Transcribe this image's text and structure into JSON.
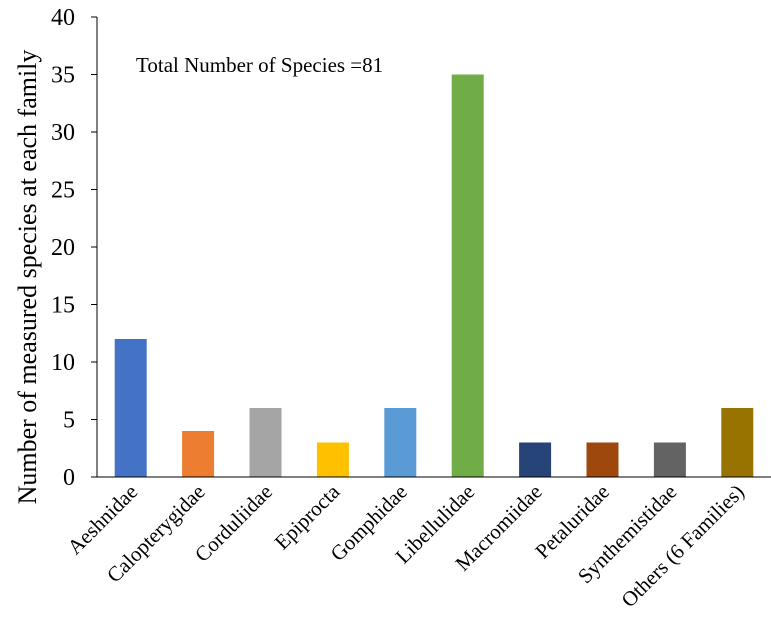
{
  "chart_data": {
    "type": "bar",
    "title": "",
    "xlabel": "",
    "ylabel": "Number of measured species at each family",
    "annotation": "Total Number of Species =81",
    "categories": [
      "Aeshnidae",
      "Calopterygidae",
      "Corduliidae",
      "Epiprocta",
      "Gomphidae",
      "Libellulidae",
      "Macromiidae",
      "Petaluridae",
      "Synthemistidae",
      "Others (6 Families)"
    ],
    "values": [
      12,
      4,
      6,
      3,
      6,
      35,
      3,
      3,
      3,
      6
    ],
    "colors": [
      "#4472C4",
      "#ED7D31",
      "#A5A5A5",
      "#FFC000",
      "#5B9BD5",
      "#70AD47",
      "#264478",
      "#9E480E",
      "#636363",
      "#997300"
    ],
    "ylim": [
      0,
      40
    ],
    "yticks": [
      0,
      5,
      10,
      15,
      20,
      25,
      30,
      35,
      40
    ],
    "grid": false,
    "legend": "none"
  }
}
